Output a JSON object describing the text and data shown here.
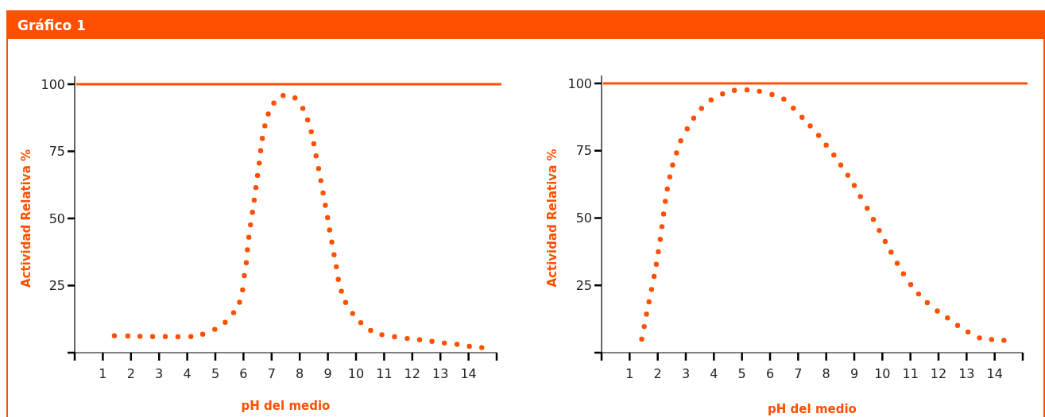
{
  "chart_data": [
    {
      "type": "scatter",
      "title": "Gráfico 1",
      "xlabel": "pH del medio",
      "ylabel": "Actividad Relativa %",
      "marker": "circle",
      "xlim": [
        0,
        15
      ],
      "xticks": [
        1,
        2,
        3,
        4,
        5,
        6,
        7,
        8,
        9,
        10,
        11,
        12,
        13,
        14
      ],
      "ylim": [
        0,
        100
      ],
      "yticks": [
        25,
        50,
        75,
        100
      ],
      "ref_lines": [
        {
          "axis": "y",
          "value": 100,
          "label": null,
          "color": "#ff5000"
        }
      ],
      "series": [
        {
          "color": "#ff5000",
          "x": [
            1.41,
            1.89,
            2.32,
            2.77,
            3.22,
            3.67,
            4.13,
            4.55,
            4.98,
            5.35,
            5.65,
            5.86,
            5.97,
            6.03,
            6.1,
            6.14,
            6.19,
            6.25,
            6.32,
            6.38,
            6.44,
            6.5,
            6.56,
            6.61,
            6.67,
            6.76,
            6.88,
            7.08,
            7.41,
            7.83,
            8.11,
            8.28,
            8.41,
            8.5,
            8.58,
            8.67,
            8.75,
            8.83,
            8.91,
            8.99,
            9.06,
            9.14,
            9.22,
            9.3,
            9.37,
            9.48,
            9.63,
            9.88,
            10.17,
            10.52,
            10.92,
            11.37,
            11.82,
            12.26,
            12.7,
            13.14,
            13.59,
            14.03,
            14.47
          ],
          "values": [
            6.3,
            6.2,
            6.1,
            6,
            6,
            5.9,
            6,
            6.9,
            8.7,
            11.3,
            14.9,
            18.8,
            23.4,
            28.7,
            33.5,
            38.3,
            43,
            47.6,
            52.3,
            56.8,
            61.5,
            66,
            70.6,
            75.2,
            79.8,
            84.5,
            88.9,
            93,
            95.8,
            94.9,
            91,
            86.7,
            82.3,
            77.8,
            73.3,
            68.6,
            64.1,
            59.5,
            54.9,
            50.3,
            45.7,
            41.2,
            36.5,
            32,
            27.3,
            22.9,
            18.7,
            14.6,
            11.2,
            8.3,
            6.7,
            5.9,
            5.3,
            4.8,
            4.2,
            3.6,
            3.1,
            2.4,
            1.9
          ]
        }
      ]
    },
    {
      "type": "scatter",
      "xlabel": "pH del medio",
      "ylabel": "Actividad Relativa %",
      "marker": "circle",
      "xlim": [
        0,
        15
      ],
      "xticks": [
        1,
        2,
        3,
        4,
        5,
        6,
        7,
        8,
        9,
        10,
        11,
        12,
        13,
        14
      ],
      "ylim": [
        0,
        100
      ],
      "yticks": [
        25,
        50,
        75,
        100
      ],
      "ref_lines": [
        {
          "axis": "y",
          "value": 100,
          "label": null,
          "color": "#ff5000"
        }
      ],
      "series": [
        {
          "color": "#ff5000",
          "x": [
            1.43,
            1.52,
            1.6,
            1.69,
            1.78,
            1.87,
            1.95,
            2.02,
            2.09,
            2.15,
            2.21,
            2.27,
            2.34,
            2.43,
            2.53,
            2.67,
            2.82,
            3.05,
            3.28,
            3.56,
            3.9,
            4.31,
            4.73,
            5.18,
            5.62,
            6.07,
            6.49,
            6.83,
            7.14,
            7.43,
            7.73,
            8,
            8.27,
            8.52,
            8.77,
            9,
            9.22,
            9.46,
            9.68,
            9.89,
            10.1,
            10.31,
            10.53,
            10.75,
            11.01,
            11.29,
            11.6,
            11.96,
            12.32,
            12.68,
            13.05,
            13.46,
            13.89,
            14.33
          ],
          "values": [
            5,
            9.7,
            14.3,
            18.9,
            23.5,
            28.3,
            32.8,
            37.5,
            42.1,
            46.8,
            51.5,
            56.2,
            60.8,
            65.3,
            69.7,
            74.2,
            78.7,
            83.1,
            87.1,
            90.7,
            93.9,
            96.1,
            97.4,
            97.6,
            97.1,
            95.9,
            94.2,
            90.8,
            87.4,
            84.2,
            80.7,
            77.1,
            73.4,
            69.7,
            65.9,
            62.1,
            58,
            53.6,
            49.5,
            45.4,
            41.3,
            37.3,
            33.2,
            29.3,
            25.3,
            21.8,
            18.6,
            15.5,
            12.9,
            10.1,
            7.7,
            5.5,
            4.9,
            4.6
          ]
        }
      ]
    }
  ]
}
